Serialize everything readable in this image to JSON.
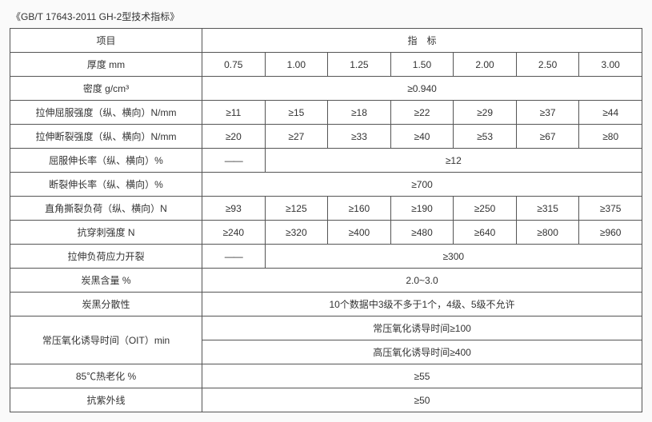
{
  "title": "《GB/T 17643-2011 GH-2型技术指标》",
  "header": {
    "item": "项目",
    "indicator": "指　标"
  },
  "thickness": {
    "label": "厚度 mm",
    "values": [
      "0.75",
      "1.00",
      "1.25",
      "1.50",
      "2.00",
      "2.50",
      "3.00"
    ]
  },
  "rows": {
    "density": {
      "label": "密度 g/cm³",
      "span": "≥0.940"
    },
    "tensile_yield": {
      "label": "拉伸屈服强度（纵、横向）N/mm",
      "values": [
        "≥11",
        "≥15",
        "≥18",
        "≥22",
        "≥29",
        "≥37",
        "≥44"
      ]
    },
    "tensile_break": {
      "label": "拉伸断裂强度（纵、横向）N/mm",
      "values": [
        "≥20",
        "≥27",
        "≥33",
        "≥40",
        "≥53",
        "≥67",
        "≥80"
      ]
    },
    "yield_elong": {
      "label": "屈服伸长率（纵、横向）%",
      "first": "——",
      "rest": "≥12"
    },
    "break_elong": {
      "label": "断裂伸长率（纵、横向）%",
      "span": "≥700"
    },
    "tear": {
      "label": "直角撕裂负荷（纵、横向）N",
      "values": [
        "≥93",
        "≥125",
        "≥160",
        "≥190",
        "≥250",
        "≥315",
        "≥375"
      ]
    },
    "puncture": {
      "label": "抗穿刺强度 N",
      "values": [
        "≥240",
        "≥320",
        "≥400",
        "≥480",
        "≥640",
        "≥800",
        "≥960"
      ]
    },
    "stress_crack": {
      "label": "拉伸负荷应力开裂",
      "first": "——",
      "rest": "≥300"
    },
    "carbon_content": {
      "label": "炭黑含量 %",
      "span": "2.0~3.0"
    },
    "carbon_disp": {
      "label": "炭黑分散性",
      "span": "10个数据中3级不多于1个，4级、5级不允许"
    },
    "oit": {
      "label": "常压氧化诱导时间（OIT）min",
      "line1": "常压氧化诱导时间≥100",
      "line2": "高压氧化诱导时间≥400"
    },
    "heat_aging": {
      "label": "85℃热老化 %",
      "span": "≥55"
    },
    "uv": {
      "label": "抗紫外线",
      "span": "≥50"
    }
  }
}
